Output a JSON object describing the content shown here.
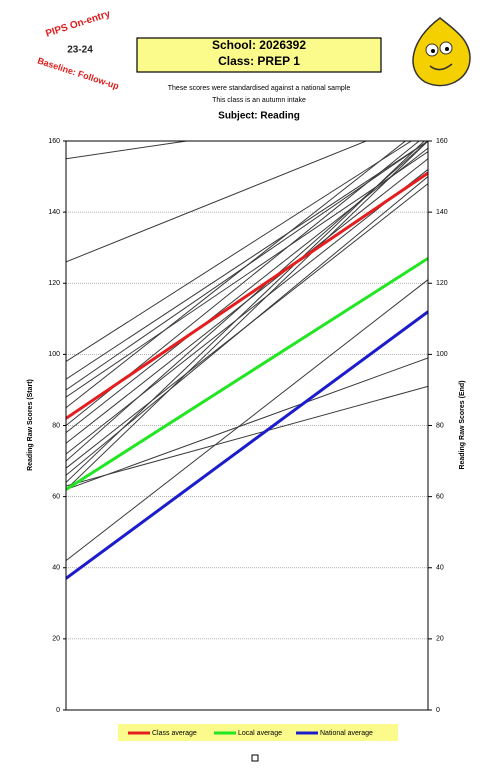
{
  "logo": {
    "line1": "PIPS On-entry",
    "line2": "23-24",
    "line3": "Baseline: Follow-up"
  },
  "header": {
    "school": "School: 2026392",
    "class": "Class: PREP 1"
  },
  "notes": [
    "These scores were standardised against a national sample",
    "This class is an autumn intake"
  ],
  "chart_data": {
    "type": "slope",
    "title": "Subject: Reading",
    "ylabel": "Reading Raw Scores (Start)",
    "y2label": "Reading Raw Scores (End)",
    "ylim": [
      0,
      160
    ],
    "yticks": [
      0,
      20,
      40,
      60,
      80,
      100,
      120,
      140,
      160
    ],
    "y2lim": [
      0,
      160
    ],
    "y2ticks": [
      0,
      20,
      40,
      60,
      80,
      100,
      120,
      140,
      160
    ],
    "grid": true,
    "line_color": "#3a3a3a",
    "lines": [
      {
        "values": [
          155,
          170
        ]
      },
      {
        "values": [
          126,
          167
        ]
      },
      {
        "values": [
          98,
          163
        ]
      },
      {
        "values": [
          93,
          160
        ]
      },
      {
        "values": [
          90,
          160
        ]
      },
      {
        "values": [
          88,
          157
        ]
      },
      {
        "values": [
          85,
          165
        ]
      },
      {
        "values": [
          80,
          162
        ]
      },
      {
        "values": [
          78,
          158
        ]
      },
      {
        "values": [
          75,
          155
        ]
      },
      {
        "values": [
          72,
          152
        ]
      },
      {
        "values": [
          70,
          160
        ]
      },
      {
        "values": [
          68,
          148
        ]
      },
      {
        "values": [
          66,
          150
        ]
      },
      {
        "values": [
          64,
          161
        ]
      },
      {
        "values": [
          62,
          99
        ]
      },
      {
        "values": [
          63,
          91
        ]
      },
      {
        "values": [
          62,
          160
        ]
      },
      {
        "values": [
          42,
          121
        ]
      }
    ],
    "series": [
      {
        "name": "Class average",
        "color": "#e41e1e",
        "values": [
          82,
          151
        ]
      },
      {
        "name": "Local average",
        "color": "#22e622",
        "values": [
          62,
          127
        ]
      },
      {
        "name": "National average",
        "color": "#1c1ccc",
        "values": [
          37,
          112
        ]
      }
    ]
  }
}
